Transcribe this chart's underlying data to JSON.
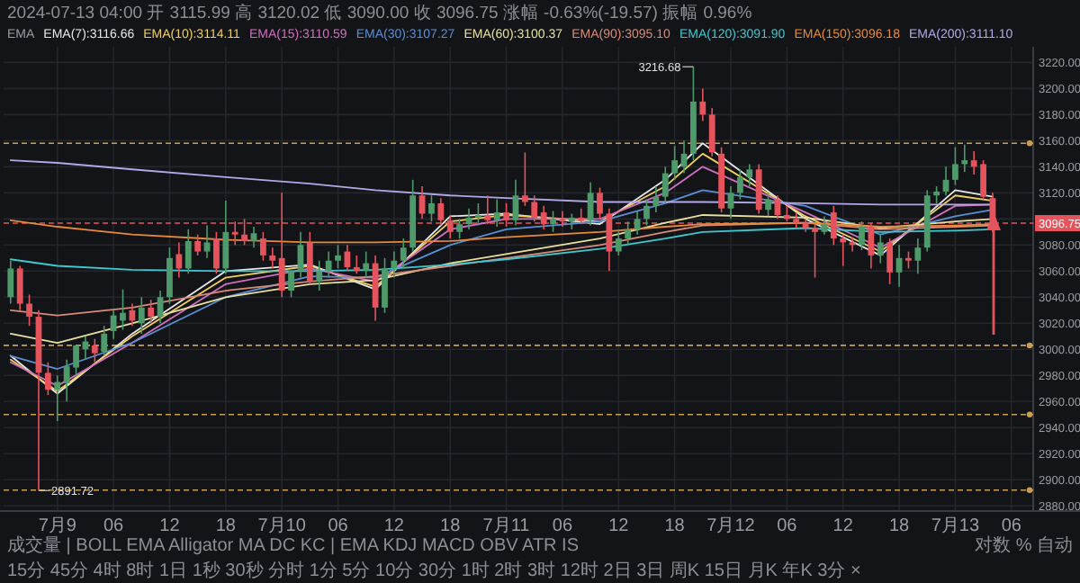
{
  "chart_data": {
    "type": "candlestick",
    "subtitle": "2024-07-13 04:00 开 3115.99 高 3120.02 低 3090.00 收 3096.75 涨幅 -0.63%(-19.57) 振幅 0.96%",
    "legend_title": "EMA",
    "legend": "top left",
    "grid": true,
    "xlim": [
      "2024-07-08T18:15",
      "2024-07-13T08:20"
    ],
    "ylim": [
      2876,
      3232
    ],
    "xticks": [
      {
        "value": "2024-07-09T00:00",
        "label": "7月9"
      },
      {
        "value": "2024-07-09T06:00",
        "label": "06"
      },
      {
        "value": "2024-07-09T12:00",
        "label": "12"
      },
      {
        "value": "2024-07-09T18:00",
        "label": "18"
      },
      {
        "value": "2024-07-10T00:00",
        "label": "7月10"
      },
      {
        "value": "2024-07-10T06:00",
        "label": "06"
      },
      {
        "value": "2024-07-10T12:00",
        "label": "12"
      },
      {
        "value": "2024-07-10T18:00",
        "label": "18"
      },
      {
        "value": "2024-07-11T00:00",
        "label": "7月11"
      },
      {
        "value": "2024-07-11T06:00",
        "label": "06"
      },
      {
        "value": "2024-07-11T12:00",
        "label": "12"
      },
      {
        "value": "2024-07-11T18:00",
        "label": "18"
      },
      {
        "value": "2024-07-12T00:00",
        "label": "7月12"
      },
      {
        "value": "2024-07-12T06:00",
        "label": "06"
      },
      {
        "value": "2024-07-12T12:00",
        "label": "12"
      },
      {
        "value": "2024-07-12T18:00",
        "label": "18"
      },
      {
        "value": "2024-07-13T00:00",
        "label": "7月13"
      },
      {
        "value": "2024-07-13T06:00",
        "label": "06"
      }
    ],
    "yticks": [
      {
        "value": 2880,
        "label": "2880.00"
      },
      {
        "value": 2900,
        "label": "2900.00"
      },
      {
        "value": 2920,
        "label": "2920.00"
      },
      {
        "value": 2940,
        "label": "2940.00"
      },
      {
        "value": 2960,
        "label": "2960.00"
      },
      {
        "value": 2980,
        "label": "2980.00"
      },
      {
        "value": 3000,
        "label": "3000.00"
      },
      {
        "value": 3020,
        "label": "3020.00"
      },
      {
        "value": 3040,
        "label": "3040.00"
      },
      {
        "value": 3060,
        "label": "3060.00"
      },
      {
        "value": 3080,
        "label": "3080.00"
      },
      {
        "value": 3100,
        "label": null
      },
      {
        "value": 3120,
        "label": "3120.00"
      },
      {
        "value": 3140,
        "label": "3140.00"
      },
      {
        "value": 3160,
        "label": "3160.00"
      },
      {
        "value": 3180,
        "label": "3180.00"
      },
      {
        "value": 3200,
        "label": "3200.00"
      },
      {
        "value": 3220,
        "label": "3220.00"
      }
    ],
    "x": [
      "2024-07-08T19:00",
      "2024-07-08T20:00",
      "2024-07-08T21:00",
      "2024-07-08T22:00",
      "2024-07-08T23:00",
      "2024-07-09T00:00",
      "2024-07-09T01:00",
      "2024-07-09T02:00",
      "2024-07-09T03:00",
      "2024-07-09T04:00",
      "2024-07-09T05:00",
      "2024-07-09T06:00",
      "2024-07-09T07:00",
      "2024-07-09T08:00",
      "2024-07-09T09:00",
      "2024-07-09T10:00",
      "2024-07-09T11:00",
      "2024-07-09T12:00",
      "2024-07-09T13:00",
      "2024-07-09T14:00",
      "2024-07-09T15:00",
      "2024-07-09T16:00",
      "2024-07-09T17:00",
      "2024-07-09T18:00",
      "2024-07-09T19:00",
      "2024-07-09T20:00",
      "2024-07-09T21:00",
      "2024-07-09T22:00",
      "2024-07-09T23:00",
      "2024-07-10T00:00",
      "2024-07-10T01:00",
      "2024-07-10T02:00",
      "2024-07-10T03:00",
      "2024-07-10T04:00",
      "2024-07-10T05:00",
      "2024-07-10T06:00",
      "2024-07-10T07:00",
      "2024-07-10T08:00",
      "2024-07-10T09:00",
      "2024-07-10T10:00",
      "2024-07-10T11:00",
      "2024-07-10T12:00",
      "2024-07-10T13:00",
      "2024-07-10T14:00",
      "2024-07-10T15:00",
      "2024-07-10T16:00",
      "2024-07-10T17:00",
      "2024-07-10T18:00",
      "2024-07-10T19:00",
      "2024-07-10T20:00",
      "2024-07-10T21:00",
      "2024-07-10T22:00",
      "2024-07-10T23:00",
      "2024-07-11T00:00",
      "2024-07-11T01:00",
      "2024-07-11T02:00",
      "2024-07-11T03:00",
      "2024-07-11T04:00",
      "2024-07-11T05:00",
      "2024-07-11T06:00",
      "2024-07-11T07:00",
      "2024-07-11T08:00",
      "2024-07-11T09:00",
      "2024-07-11T10:00",
      "2024-07-11T11:00",
      "2024-07-11T12:00",
      "2024-07-11T13:00",
      "2024-07-11T14:00",
      "2024-07-11T15:00",
      "2024-07-11T16:00",
      "2024-07-11T17:00",
      "2024-07-11T18:00",
      "2024-07-11T19:00",
      "2024-07-11T20:00",
      "2024-07-11T21:00",
      "2024-07-11T22:00",
      "2024-07-11T23:00",
      "2024-07-12T00:00",
      "2024-07-12T01:00",
      "2024-07-12T02:00",
      "2024-07-12T03:00",
      "2024-07-12T04:00",
      "2024-07-12T05:00",
      "2024-07-12T06:00",
      "2024-07-12T07:00",
      "2024-07-12T08:00",
      "2024-07-12T09:00",
      "2024-07-12T10:00",
      "2024-07-12T11:00",
      "2024-07-12T12:00",
      "2024-07-12T13:00",
      "2024-07-12T14:00",
      "2024-07-12T15:00",
      "2024-07-12T16:00",
      "2024-07-12T17:00",
      "2024-07-12T18:00",
      "2024-07-12T19:00",
      "2024-07-12T20:00",
      "2024-07-12T21:00",
      "2024-07-12T22:00",
      "2024-07-12T23:00",
      "2024-07-13T00:00",
      "2024-07-13T01:00",
      "2024-07-13T02:00",
      "2024-07-13T03:00",
      "2024-07-13T04:00"
    ],
    "ohlc": [
      [
        3040,
        3068,
        3035,
        3062
      ],
      [
        3062,
        3064,
        3030,
        3035
      ],
      [
        3035,
        3042,
        3018,
        3025
      ],
      [
        3025,
        3030,
        2891.72,
        2982
      ],
      [
        2982,
        2990,
        2965,
        2969
      ],
      [
        2969,
        2980,
        2945,
        2975
      ],
      [
        2974,
        2992,
        2960,
        2987
      ],
      [
        2986,
        3003,
        2980,
        3003
      ],
      [
        3000,
        3010,
        2992,
        3006
      ],
      [
        3003,
        3008,
        2990,
        2997
      ],
      [
        2998,
        3018,
        2995,
        3012
      ],
      [
        3014,
        3030,
        3008,
        3026
      ],
      [
        3022,
        3046,
        3015,
        3028
      ],
      [
        3030,
        3035,
        3018,
        3022
      ],
      [
        3020,
        3040,
        3012,
        3032
      ],
      [
        3032,
        3038,
        3020,
        3025
      ],
      [
        3025,
        3045,
        3020,
        3040
      ],
      [
        3040,
        3078,
        3035,
        3070
      ],
      [
        3073,
        3082,
        3055,
        3062
      ],
      [
        3062,
        3092,
        3058,
        3083
      ],
      [
        3083,
        3088,
        3072,
        3075
      ],
      [
        3075,
        3095,
        3070,
        3082
      ],
      [
        3085,
        3090,
        3058,
        3062
      ],
      [
        3062,
        3114,
        3058,
        3090
      ],
      [
        3090,
        3098,
        3080,
        3088
      ],
      [
        3088,
        3100,
        3080,
        3083
      ],
      [
        3083,
        3094,
        3078,
        3089
      ],
      [
        3085,
        3090,
        3068,
        3072
      ],
      [
        3072,
        3078,
        3062,
        3068
      ],
      [
        3070,
        3120,
        3040,
        3045
      ],
      [
        3045,
        3060,
        3040,
        3060
      ],
      [
        3060,
        3090,
        3055,
        3080
      ],
      [
        3082,
        3090,
        3050,
        3052
      ],
      [
        3052,
        3068,
        3045,
        3060
      ],
      [
        3060,
        3075,
        3055,
        3068
      ],
      [
        3068,
        3080,
        3062,
        3072
      ],
      [
        3075,
        3080,
        3060,
        3063
      ],
      [
        3063,
        3072,
        3058,
        3060
      ],
      [
        3060,
        3075,
        3055,
        3066
      ],
      [
        3066,
        3072,
        3022,
        3032
      ],
      [
        3032,
        3070,
        3028,
        3062
      ],
      [
        3062,
        3075,
        3055,
        3068
      ],
      [
        3068,
        3085,
        3062,
        3078
      ],
      [
        3078,
        3130,
        3075,
        3118
      ],
      [
        3118,
        3125,
        3100,
        3104
      ],
      [
        3104,
        3118,
        3098,
        3112
      ],
      [
        3112,
        3116,
        3095,
        3099
      ],
      [
        3099,
        3103,
        3085,
        3090
      ],
      [
        3090,
        3100,
        3085,
        3096
      ],
      [
        3096,
        3108,
        3092,
        3101
      ],
      [
        3101,
        3112,
        3095,
        3103
      ],
      [
        3103,
        3118,
        3096,
        3099
      ],
      [
        3099,
        3115,
        3094,
        3105
      ],
      [
        3105,
        3112,
        3094,
        3099
      ],
      [
        3099,
        3130,
        3095,
        3118
      ],
      [
        3118,
        3151,
        3110,
        3113
      ],
      [
        3113,
        3118,
        3098,
        3101
      ],
      [
        3105,
        3110,
        3092,
        3096
      ],
      [
        3096,
        3106,
        3090,
        3100
      ],
      [
        3100,
        3106,
        3094,
        3098
      ],
      [
        3098,
        3104,
        3092,
        3101
      ],
      [
        3101,
        3108,
        3096,
        3099
      ],
      [
        3099,
        3128,
        3095,
        3120
      ],
      [
        3120,
        3124,
        3100,
        3104
      ],
      [
        3104,
        3108,
        3060,
        3075
      ],
      [
        3075,
        3092,
        3072,
        3085
      ],
      [
        3085,
        3098,
        3080,
        3092
      ],
      [
        3092,
        3106,
        3088,
        3100
      ],
      [
        3100,
        3115,
        3095,
        3110
      ],
      [
        3110,
        3125,
        3105,
        3117
      ],
      [
        3117,
        3140,
        3112,
        3135
      ],
      [
        3135,
        3156,
        3130,
        3145
      ],
      [
        3140,
        3160,
        3135,
        3150
      ],
      [
        3150,
        3216.68,
        3145,
        3190
      ],
      [
        3190,
        3200,
        3175,
        3180
      ],
      [
        3180,
        3185,
        3148,
        3151
      ],
      [
        3150,
        3155,
        3105,
        3108
      ],
      [
        3108,
        3125,
        3100,
        3120
      ],
      [
        3120,
        3138,
        3115,
        3132
      ],
      [
        3132,
        3142,
        3125,
        3138
      ],
      [
        3138,
        3142,
        3104,
        3107
      ],
      [
        3107,
        3120,
        3102,
        3115
      ],
      [
        3115,
        3118,
        3100,
        3103
      ],
      [
        3103,
        3110,
        3098,
        3100
      ],
      [
        3100,
        3105,
        3093,
        3097
      ],
      [
        3097,
        3100,
        3090,
        3093
      ],
      [
        3093,
        3096,
        3055,
        3090
      ],
      [
        3090,
        3102,
        3088,
        3096
      ],
      [
        3105,
        3110,
        3080,
        3085
      ],
      [
        3085,
        3088,
        3064,
        3082
      ],
      [
        3082,
        3086,
        3075,
        3080
      ],
      [
        3080,
        3098,
        3076,
        3094
      ],
      [
        3094,
        3097,
        3062,
        3072
      ],
      [
        3072,
        3088,
        3066,
        3082
      ],
      [
        3082,
        3085,
        3050,
        3059
      ],
      [
        3059,
        3080,
        3048,
        3070
      ],
      [
        3070,
        3075,
        3062,
        3068
      ],
      [
        3068,
        3085,
        3058,
        3078
      ],
      [
        3078,
        3122,
        3075,
        3118
      ],
      [
        3118,
        3125,
        3112,
        3121
      ],
      [
        3121,
        3140,
        3118,
        3130
      ],
      [
        3130,
        3155,
        3126,
        3142
      ],
      [
        3142,
        3157,
        3136,
        3145
      ],
      [
        3145,
        3152,
        3134,
        3140
      ],
      [
        3142,
        3145,
        3115,
        3117
      ],
      [
        3115.99,
        3120.02,
        3090,
        3096.75
      ]
    ],
    "colors": [
      "#4e9a6a",
      "#e5535c",
      "#e5535c",
      "#e5535c",
      "#e5535c",
      "#4e9a6a",
      "#4e9a6a",
      "#4e9a6a",
      "#4e9a6a",
      "#e5535c",
      "#4e9a6a",
      "#4e9a6a",
      "#4e9a6a",
      "#e5535c",
      "#4e9a6a",
      "#e5535c",
      "#4e9a6a",
      "#4e9a6a",
      "#e5535c",
      "#4e9a6a",
      "#e5535c",
      "#4e9a6a",
      "#e5535c",
      "#4e9a6a",
      "#e5535c",
      "#e5535c",
      "#4e9a6a",
      "#e5535c",
      "#e5535c",
      "#e5535c",
      "#4e9a6a",
      "#4e9a6a",
      "#e5535c",
      "#4e9a6a",
      "#4e9a6a",
      "#4e9a6a",
      "#e5535c",
      "#e5535c",
      "#4e9a6a",
      "#e5535c",
      "#4e9a6a",
      "#4e9a6a",
      "#4e9a6a",
      "#4e9a6a",
      "#e5535c",
      "#4e9a6a",
      "#e5535c",
      "#e5535c",
      "#4e9a6a",
      "#4e9a6a",
      "#4e9a6a",
      "#e5535c",
      "#4e9a6a",
      "#e5535c",
      "#4e9a6a",
      "#e5535c",
      "#e5535c",
      "#e5535c",
      "#4e9a6a",
      "#e5535c",
      "#4e9a6a",
      "#e5535c",
      "#4e9a6a",
      "#e5535c",
      "#e5535c",
      "#4e9a6a",
      "#4e9a6a",
      "#4e9a6a",
      "#4e9a6a",
      "#4e9a6a",
      "#4e9a6a",
      "#4e9a6a",
      "#4e9a6a",
      "#4e9a6a",
      "#e5535c",
      "#e5535c",
      "#e5535c",
      "#4e9a6a",
      "#4e9a6a",
      "#4e9a6a",
      "#e5535c",
      "#4e9a6a",
      "#e5535c",
      "#e5535c",
      "#e5535c",
      "#e5535c",
      "#e5535c",
      "#4e9a6a",
      "#e5535c",
      "#e5535c",
      "#e5535c",
      "#4e9a6a",
      "#e5535c",
      "#4e9a6a",
      "#e5535c",
      "#4e9a6a",
      "#e5535c",
      "#4e9a6a",
      "#4e9a6a",
      "#4e9a6a",
      "#4e9a6a",
      "#4e9a6a",
      "#4e9a6a",
      "#e5535c",
      "#e5535c",
      "#e5535c"
    ],
    "series": [
      {
        "type": "line",
        "name": "EMA(7):3116.66",
        "color": "#e8e8e8",
        "x": [
          "2024-07-08T19:00",
          "2024-07-09T00:00",
          "2024-07-09T08:00",
          "2024-07-09T18:00",
          "2024-07-10T03:00",
          "2024-07-10T10:00",
          "2024-07-10T18:00",
          "2024-07-11T00:00",
          "2024-07-11T10:00",
          "2024-07-11T17:00",
          "2024-07-11T21:00",
          "2024-07-12T08:00",
          "2024-07-12T16:00",
          "2024-07-13T00:00",
          "2024-07-13T04:00"
        ],
        "values": [
          2995,
          2966,
          3012,
          3060,
          3065,
          3046,
          3102,
          3104,
          3096,
          3130,
          3158,
          3100,
          3072,
          3122,
          3117
        ]
      },
      {
        "type": "line",
        "name": "EMA(10):3114.11",
        "color": "#f0d060",
        "x": [
          "2024-07-08T19:00",
          "2024-07-09T00:00",
          "2024-07-09T08:00",
          "2024-07-09T18:00",
          "2024-07-10T03:00",
          "2024-07-10T10:00",
          "2024-07-10T18:00",
          "2024-07-11T00:00",
          "2024-07-11T10:00",
          "2024-07-11T17:00",
          "2024-07-11T21:00",
          "2024-07-12T08:00",
          "2024-07-12T16:00",
          "2024-07-13T00:00",
          "2024-07-13T04:00"
        ],
        "values": [
          2992,
          2968,
          3010,
          3055,
          3064,
          3048,
          3098,
          3103,
          3098,
          3125,
          3150,
          3102,
          3075,
          3118,
          3114
        ]
      },
      {
        "type": "line",
        "name": "EMA(15):3110.59",
        "color": "#d070c0",
        "x": [
          "2024-07-08T19:00",
          "2024-07-09T00:00",
          "2024-07-09T08:00",
          "2024-07-09T18:00",
          "2024-07-10T03:00",
          "2024-07-10T10:00",
          "2024-07-10T18:00",
          "2024-07-11T00:00",
          "2024-07-11T10:00",
          "2024-07-11T17:00",
          "2024-07-11T21:00",
          "2024-07-12T08:00",
          "2024-07-12T16:00",
          "2024-07-13T00:00",
          "2024-07-13T04:00"
        ],
        "values": [
          2990,
          2972,
          3005,
          3050,
          3062,
          3052,
          3092,
          3100,
          3100,
          3120,
          3140,
          3105,
          3078,
          3110,
          3111
        ]
      },
      {
        "type": "line",
        "name": "EMA(30):3107.27",
        "color": "#5a8fd6",
        "x": [
          "2024-07-08T19:00",
          "2024-07-09T00:00",
          "2024-07-09T08:00",
          "2024-07-09T18:00",
          "2024-07-10T03:00",
          "2024-07-10T10:00",
          "2024-07-10T18:00",
          "2024-07-11T00:00",
          "2024-07-11T10:00",
          "2024-07-11T17:00",
          "2024-07-11T21:00",
          "2024-07-12T08:00",
          "2024-07-12T16:00",
          "2024-07-13T00:00",
          "2024-07-13T04:00"
        ],
        "values": [
          2995,
          2985,
          3005,
          3040,
          3056,
          3055,
          3080,
          3092,
          3098,
          3112,
          3122,
          3110,
          3088,
          3102,
          3107
        ]
      },
      {
        "type": "line",
        "name": "EMA(60):3100.37",
        "color": "#e8e0a0",
        "x": [
          "2024-07-08T19:00",
          "2024-07-09T00:00",
          "2024-07-09T08:00",
          "2024-07-09T18:00",
          "2024-07-10T03:00",
          "2024-07-10T10:00",
          "2024-07-10T18:00",
          "2024-07-11T00:00",
          "2024-07-11T10:00",
          "2024-07-11T17:00",
          "2024-07-11T21:00",
          "2024-07-12T08:00",
          "2024-07-12T16:00",
          "2024-07-13T00:00",
          "2024-07-13T04:00"
        ],
        "values": [
          3012,
          3005,
          3020,
          3040,
          3050,
          3053,
          3066,
          3073,
          3085,
          3097,
          3103,
          3101,
          3093,
          3098,
          3100
        ]
      },
      {
        "type": "line",
        "name": "EMA(90):3095.10",
        "color": "#d98c7a",
        "x": [
          "2024-07-08T19:00",
          "2024-07-09T00:00",
          "2024-07-09T08:00",
          "2024-07-09T18:00",
          "2024-07-10T03:00",
          "2024-07-10T10:00",
          "2024-07-10T18:00",
          "2024-07-11T00:00",
          "2024-07-11T10:00",
          "2024-07-11T17:00",
          "2024-07-11T21:00",
          "2024-07-12T08:00",
          "2024-07-12T16:00",
          "2024-07-13T00:00",
          "2024-07-13T04:00"
        ],
        "values": [
          3030,
          3026,
          3032,
          3045,
          3052,
          3056,
          3064,
          3070,
          3080,
          3090,
          3095,
          3097,
          3092,
          3094,
          3095
        ]
      },
      {
        "type": "line",
        "name": "EMA(120):3091.90",
        "color": "#40c8d0",
        "x": [
          "2024-07-08T19:00",
          "2024-07-09T00:00",
          "2024-07-09T08:00",
          "2024-07-09T18:00",
          "2024-07-10T03:00",
          "2024-07-10T10:00",
          "2024-07-10T18:00",
          "2024-07-11T00:00",
          "2024-07-11T10:00",
          "2024-07-11T17:00",
          "2024-07-11T21:00",
          "2024-07-12T08:00",
          "2024-07-12T16:00",
          "2024-07-13T00:00",
          "2024-07-13T04:00"
        ],
        "values": [
          3069,
          3064,
          3061,
          3060,
          3060,
          3061,
          3065,
          3069,
          3077,
          3085,
          3090,
          3093,
          3090,
          3091,
          3092
        ]
      },
      {
        "type": "line",
        "name": "EMA(150):3096.18",
        "color": "#e88a3a",
        "x": [
          "2024-07-08T19:00",
          "2024-07-09T00:00",
          "2024-07-09T08:00",
          "2024-07-09T18:00",
          "2024-07-10T03:00",
          "2024-07-10T10:00",
          "2024-07-10T18:00",
          "2024-07-11T00:00",
          "2024-07-11T10:00",
          "2024-07-11T17:00",
          "2024-07-11T21:00",
          "2024-07-12T08:00",
          "2024-07-12T16:00",
          "2024-07-13T00:00",
          "2024-07-13T04:00"
        ],
        "values": [
          3099,
          3094,
          3088,
          3084,
          3082,
          3082,
          3083,
          3086,
          3090,
          3094,
          3096,
          3097,
          3094,
          3095,
          3096
        ]
      },
      {
        "type": "line",
        "name": "EMA(200):3111.10",
        "color": "#b4a8e8",
        "x": [
          "2024-07-08T19:00",
          "2024-07-09T00:00",
          "2024-07-09T08:00",
          "2024-07-09T18:00",
          "2024-07-10T03:00",
          "2024-07-10T10:00",
          "2024-07-10T18:00",
          "2024-07-11T00:00",
          "2024-07-11T10:00",
          "2024-07-11T17:00",
          "2024-07-11T21:00",
          "2024-07-12T08:00",
          "2024-07-12T16:00",
          "2024-07-13T00:00",
          "2024-07-13T04:00"
        ],
        "values": [
          3145,
          3143,
          3138,
          3132,
          3127,
          3122,
          3118,
          3116,
          3113,
          3113,
          3113,
          3112,
          3111,
          3111,
          3111
        ]
      }
    ],
    "ref_lines": [
      {
        "axis": "y",
        "value": 3158,
        "color": "#c8a050",
        "line_style": "dashed"
      },
      {
        "axis": "y",
        "value": 3096.75,
        "label": "3096.75",
        "color": "#e5535c",
        "line_style": "dashed"
      },
      {
        "axis": "y",
        "value": 3003,
        "color": "#c8a050",
        "line_style": "dashed"
      },
      {
        "axis": "y",
        "value": 2950,
        "color": "#c8a050",
        "line_style": "dashed"
      },
      {
        "axis": "y",
        "value": 2892,
        "color": "#c8a050",
        "line_style": "dashed"
      }
    ],
    "annotations": [
      {
        "text": "3216.68",
        "x": "2024-07-11T20:00",
        "y": 3216.68
      },
      {
        "text": "2891.72",
        "x": "2024-07-08T22:00",
        "y": 2891.72
      },
      "成交量 | BOLL EMA Alligator MA DC KC | EMA KDJ MACD OBV ATR IS",
      "对数 % 自动",
      "15分 45分 4时 8时 1日 1秒 30秒 分时 1分 5分 10分 30分 1时 2时 3时 12时 2日 3日 周K 15日 月K 年K 3分 ×"
    ]
  }
}
